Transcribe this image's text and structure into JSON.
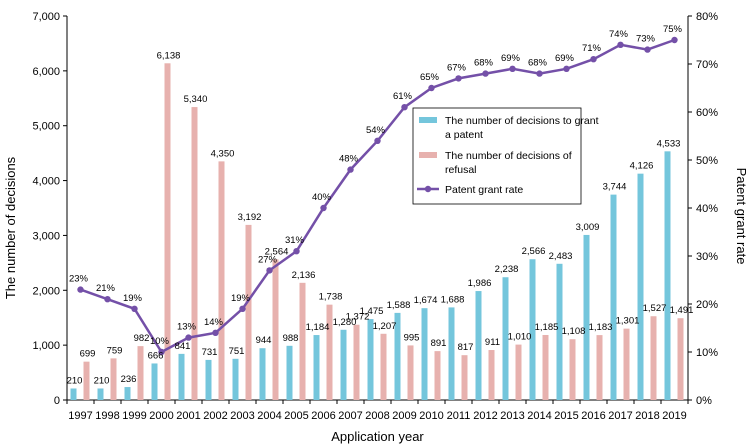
{
  "chart_data": {
    "type": "bar+line",
    "categories": [
      "1997",
      "1998",
      "1999",
      "2000",
      "2001",
      "2002",
      "2003",
      "2004",
      "2005",
      "2006",
      "2007",
      "2008",
      "2009",
      "2010",
      "2011",
      "2012",
      "2013",
      "2014",
      "2015",
      "2016",
      "2017",
      "2018",
      "2019"
    ],
    "series": [
      {
        "name": "The number of decisions to grant a patent",
        "type": "bar",
        "axis": "left",
        "color": "#74c6dc",
        "values": [
          210,
          210,
          236,
          666,
          841,
          731,
          751,
          944,
          988,
          1184,
          1280,
          1475,
          1588,
          1674,
          1688,
          1986,
          2238,
          2566,
          2483,
          3009,
          3744,
          4126,
          4533
        ],
        "labels": [
          "210",
          "210",
          "236",
          "666",
          "841",
          "731",
          "751",
          "944",
          "988",
          "1,184",
          "1,280",
          "1,475",
          "1,588",
          "1,674",
          "1,688",
          "1,986",
          "2,238",
          "2,566",
          "2,483",
          "3,009",
          "3,744",
          "4,126",
          "4,533"
        ]
      },
      {
        "name": "The number of decisions of refusal",
        "type": "bar",
        "axis": "left",
        "color": "#e7b1ae",
        "values": [
          699,
          759,
          982,
          6138,
          5340,
          4350,
          3192,
          2564,
          2136,
          1738,
          1372,
          1207,
          995,
          891,
          817,
          911,
          1010,
          1185,
          1108,
          1183,
          1301,
          1527,
          1491
        ],
        "labels": [
          "699",
          "759",
          "982",
          "6,138",
          "5,340",
          "4,350",
          "3,192",
          "2,564",
          "2,136",
          "1,738",
          "1,372",
          "1,207",
          "995",
          "891",
          "817",
          "911",
          "1,010",
          "1,185",
          "1,108",
          "1,183",
          "1,301",
          "1,527",
          "1,491"
        ]
      },
      {
        "name": "Patent grant rate",
        "type": "line",
        "axis": "right",
        "color": "#7450a8",
        "values": [
          23,
          21,
          19,
          10,
          13,
          14,
          19,
          27,
          31,
          40,
          48,
          54,
          61,
          65,
          67,
          68,
          69,
          68,
          69,
          71,
          74,
          73,
          75
        ],
        "labels": [
          "23%",
          "21%",
          "19%",
          "10%",
          "13%",
          "14%",
          "19%",
          "27%",
          "31%",
          "40%",
          "48%",
          "54%",
          "61%",
          "65%",
          "67%",
          "68%",
          "69%",
          "68%",
          "69%",
          "71%",
          "74%",
          "73%",
          "75%"
        ]
      }
    ],
    "left_axis": {
      "label": "The number of decisions",
      "range": [
        0,
        7000
      ],
      "ticks": [
        0,
        1000,
        2000,
        3000,
        4000,
        5000,
        6000,
        7000
      ],
      "tick_labels": [
        "0",
        "1,000",
        "2,000",
        "3,000",
        "4,000",
        "5,000",
        "6,000",
        "7,000"
      ]
    },
    "right_axis": {
      "label": "Patent grant rate",
      "range": [
        0,
        80
      ],
      "ticks": [
        0,
        10,
        20,
        30,
        40,
        50,
        60,
        70,
        80
      ],
      "tick_labels": [
        "0%",
        "10%",
        "20%",
        "30%",
        "40%",
        "50%",
        "60%",
        "70%",
        "80%"
      ]
    },
    "xlabel": "Application year",
    "legend": {
      "position": "upper-center",
      "lines": [
        [
          "The number of decisions to grant",
          "a patent"
        ],
        [
          "The number of decisions of",
          "refusal"
        ],
        [
          "Patent grant rate"
        ]
      ]
    },
    "grid": false
  }
}
